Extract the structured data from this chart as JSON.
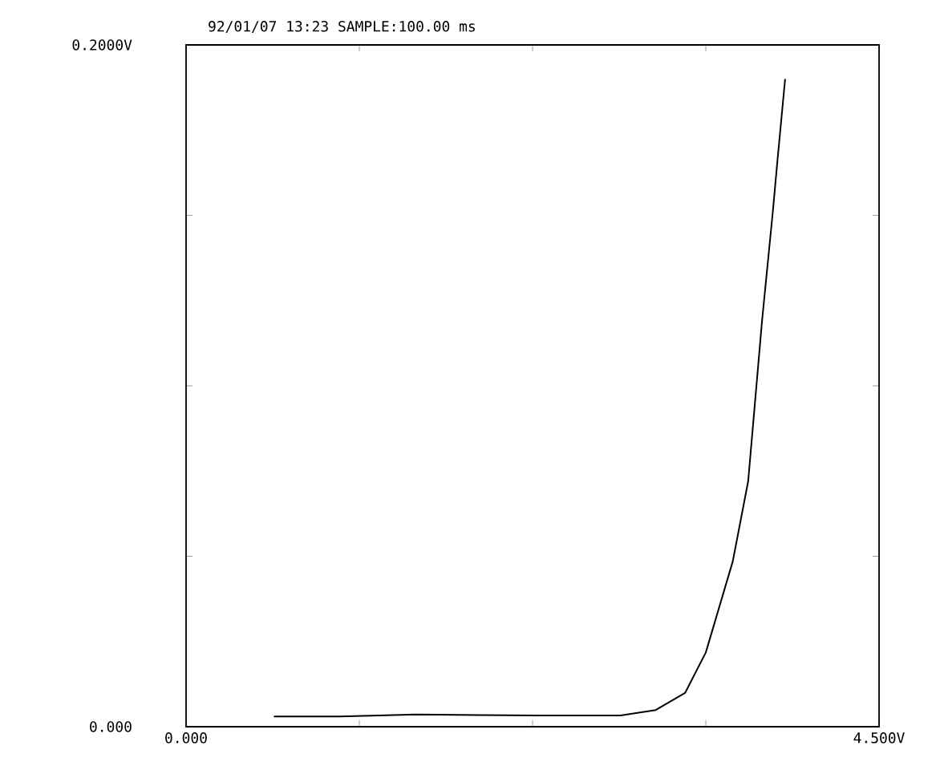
{
  "chart_data": {
    "type": "line",
    "title": "92/01/07 13:23   SAMPLE:100.00 ms",
    "xlim": [
      0,
      4.5
    ],
    "ylim": [
      0,
      0.2
    ],
    "xticks": [
      {
        "value": 0,
        "label": "0.000"
      },
      {
        "value": 1.125,
        "label": null
      },
      {
        "value": 2.25,
        "label": null
      },
      {
        "value": 3.375,
        "label": null
      },
      {
        "value": 4.5,
        "label": "4.500V"
      }
    ],
    "yticks": [
      {
        "value": 0,
        "label": "0.000"
      },
      {
        "value": 0.05,
        "label": null
      },
      {
        "value": 0.1,
        "label": null
      },
      {
        "value": 0.15,
        "label": null
      },
      {
        "value": 0.2,
        "label": "0.2000V"
      }
    ],
    "series": [
      {
        "color": "#000000",
        "x": [
          0.57,
          1.0,
          1.5,
          1.9,
          2.28,
          2.82,
          3.05,
          3.24,
          3.375,
          3.55,
          3.65,
          3.74,
          3.81,
          3.84,
          3.89
        ],
        "values": [
          0.003,
          0.003,
          0.0036,
          0.0034,
          0.0033,
          0.0033,
          0.0049,
          0.0099,
          0.0218,
          0.0485,
          0.072,
          0.119,
          0.151,
          0.166,
          0.19
        ]
      }
    ]
  }
}
